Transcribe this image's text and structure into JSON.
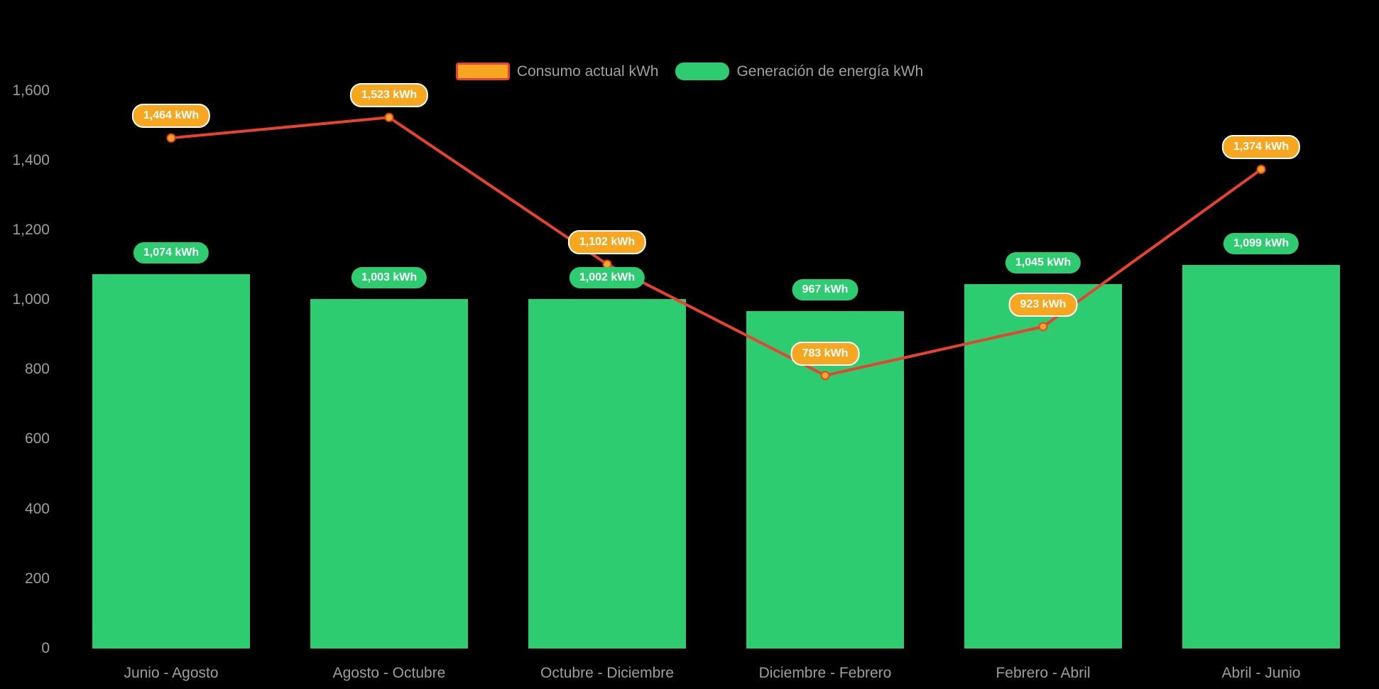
{
  "chart_data": {
    "type": "combo-bar-line",
    "categories": [
      "Junio - Agosto",
      "Agosto - Octubre",
      "Octubre - Diciembre",
      "Diciembre - Febrero",
      "Febrero - Abril",
      "Abril - Junio"
    ],
    "series": [
      {
        "name": "Consumo actual kWh",
        "type": "line",
        "color": "#e8432e",
        "point_fill": "#f6a61f",
        "values": [
          1464,
          1523,
          1102,
          783,
          923,
          1374
        ],
        "value_labels": [
          "1,464 kWh",
          "1,523 kWh",
          "1,102 kWh",
          "783 kWh",
          "923 kWh",
          "1,374 kWh"
        ]
      },
      {
        "name": "Generación de energía kWh",
        "type": "bar",
        "color": "#2ecc71",
        "values": [
          1074,
          1003,
          1002,
          967,
          1045,
          1099
        ],
        "value_labels": [
          "1,074 kWh",
          "1,003 kWh",
          "1,002 kWh",
          "967 kWh",
          "1,045 kWh",
          "1,099 kWh"
        ]
      }
    ],
    "y_axis": {
      "min": 0,
      "max": 1600,
      "step": 200,
      "tick_labels": [
        "0",
        "200",
        "400",
        "600",
        "800",
        "1,000",
        "1,200",
        "1,400",
        "1,600"
      ]
    },
    "xlabel": "",
    "ylabel": "",
    "title": "",
    "legend_position": "top",
    "grid": "off",
    "background": "#000000"
  },
  "colors": {
    "bar_green": "#2ecc71",
    "line_red": "#e8432e",
    "point_orange": "#f6a61f",
    "axis_text": "#9e9e9e",
    "legend_text": "#a0a0a0",
    "pill_text": "#ffffff"
  }
}
